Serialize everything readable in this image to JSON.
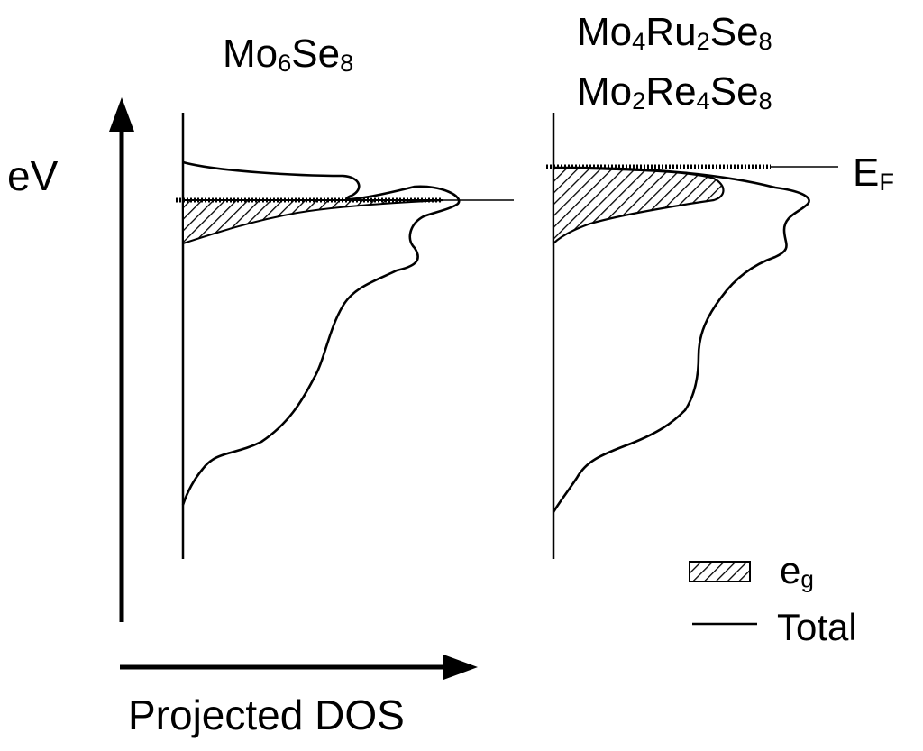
{
  "panels": [
    {
      "formula": [
        {
          "t": "Mo"
        },
        {
          "s": "6"
        },
        {
          "t": "Se"
        },
        {
          "s": "8"
        }
      ]
    },
    {
      "formula": [
        {
          "t": "Mo"
        },
        {
          "s": "4"
        },
        {
          "t": "Ru"
        },
        {
          "s": "2"
        },
        {
          "t": "Se"
        },
        {
          "s": "8"
        }
      ]
    },
    {
      "formula": [
        {
          "t": "Mo"
        },
        {
          "s": "2"
        },
        {
          "t": "Re"
        },
        {
          "s": "4"
        },
        {
          "t": "Se"
        },
        {
          "s": "8"
        }
      ]
    }
  ],
  "axes": {
    "y_label": "eV",
    "x_label": "Projected DOS"
  },
  "fermi_label": {
    "main": "E",
    "sub": "F"
  },
  "legend": {
    "eg": {
      "main": "e",
      "sub": "g"
    },
    "total": "Total"
  },
  "colors": {
    "ink": "#000000",
    "background": "#ffffff"
  }
}
